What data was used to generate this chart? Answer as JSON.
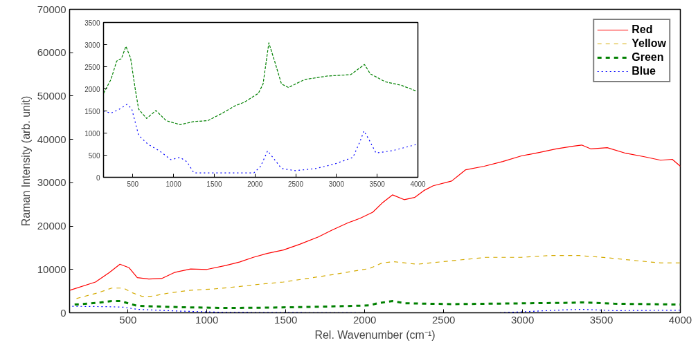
{
  "chart_data": [
    {
      "type": "line",
      "xlabel": "Rel. Wavenumber (cm⁻¹)",
      "ylabel": "Raman Intensity (arb. unit)",
      "xlim": [
        130,
        4000
      ],
      "ylim": [
        0,
        70000
      ],
      "xticks": [
        500,
        1000,
        1500,
        2000,
        2500,
        3000,
        3500,
        4000
      ],
      "yticks": [
        0,
        10000,
        20000,
        30000,
        40000,
        50000,
        60000,
        70000
      ],
      "grid": false,
      "legend": "top right",
      "series": [
        {
          "name": "Red",
          "color": "#ff0000",
          "line_style": "solid",
          "x": [
            132,
            294,
            382,
            449,
            507,
            559,
            632,
            713,
            794,
            897,
            1000,
            1118,
            1206,
            1294,
            1382,
            1485,
            1588,
            1706,
            1794,
            1897,
            1971,
            2051,
            2110,
            2176,
            2250,
            2316,
            2375,
            2434,
            2551,
            2640,
            2757,
            2875,
            2993,
            3110,
            3213,
            3316,
            3375,
            3434,
            3537,
            3654,
            3772,
            3875,
            3949,
            4000
          ],
          "values": [
            5200,
            7100,
            9300,
            11200,
            10400,
            8100,
            7800,
            7900,
            9300,
            10100,
            10000,
            10900,
            11700,
            12800,
            13700,
            14500,
            15800,
            17500,
            19100,
            20800,
            21800,
            23200,
            25300,
            27200,
            26100,
            26600,
            28200,
            29300,
            30400,
            33000,
            33800,
            34900,
            36200,
            37000,
            37800,
            38400,
            38700,
            37800,
            38100,
            36800,
            36000,
            35200,
            35400,
            33800
          ]
        },
        {
          "name": "Yellow",
          "color": "#d4aa00",
          "line_style": "dashed",
          "x": [
            174,
            309,
            397,
            471,
            529,
            588,
            647,
            765,
            897,
            1044,
            1191,
            1338,
            1485,
            1632,
            1779,
            1926,
            2029,
            2110,
            2184,
            2331,
            2551,
            2772,
            2993,
            3169,
            3360,
            3537,
            3728,
            3875,
            4000
          ],
          "values": [
            3300,
            4600,
            5700,
            5700,
            4600,
            3800,
            3800,
            4600,
            5200,
            5500,
            6000,
            6600,
            7100,
            7900,
            8700,
            9600,
            10200,
            11500,
            11800,
            11200,
            12000,
            12800,
            12800,
            13200,
            13200,
            12700,
            12000,
            11500,
            11500
          ]
        },
        {
          "name": "Green",
          "color": "#008000",
          "line_style": "dashed",
          "x": [
            162,
            309,
            397,
            456,
            500,
            559,
            824,
            1118,
            1412,
            1706,
            2029,
            2081,
            2176,
            2257,
            2551,
            3287,
            3375,
            3581,
            4000
          ],
          "values": [
            1900,
            2300,
            2700,
            2700,
            2200,
            1600,
            1300,
            1100,
            1200,
            1400,
            1700,
            2200,
            2700,
            2200,
            2000,
            2300,
            2400,
            2100,
            1900
          ]
        },
        {
          "name": "Blue",
          "color": "#0000ff",
          "line_style": "dotted",
          "x": [
            147,
            382,
            471,
            559,
            824,
            1118,
            2000,
            2846,
            3287,
            3375,
            3581,
            4000
          ],
          "values": [
            1500,
            1400,
            1300,
            800,
            400,
            100,
            0,
            0,
            700,
            800,
            500,
            600
          ]
        }
      ]
    },
    {
      "type": "line",
      "xlim": [
        140,
        4000
      ],
      "ylim": [
        0,
        3500
      ],
      "xticks": [
        500,
        1000,
        1500,
        2000,
        2500,
        3000,
        3500,
        4000
      ],
      "yticks": [
        0,
        500,
        1000,
        1500,
        2000,
        2500,
        3000,
        3500
      ],
      "grid": false,
      "series": [
        {
          "color": "#008000",
          "line_style": "dashed",
          "x": [
            141,
            231,
            302,
            359,
            415,
            472,
            528,
            571,
            670,
            783,
            910,
            1080,
            1250,
            1420,
            1589,
            1759,
            1872,
            2042,
            2099,
            2170,
            2240,
            2325,
            2410,
            2608,
            2891,
            3174,
            3344,
            3415,
            3598,
            3796,
            3980
          ],
          "values": [
            1900,
            2210,
            2630,
            2680,
            2960,
            2700,
            2010,
            1540,
            1330,
            1510,
            1280,
            1190,
            1260,
            1280,
            1440,
            1620,
            1700,
            1900,
            2110,
            3040,
            2630,
            2110,
            2030,
            2210,
            2290,
            2320,
            2550,
            2340,
            2160,
            2080,
            1950
          ]
        },
        {
          "color": "#0000ff",
          "line_style": "dotted",
          "x": [
            141,
            231,
            344,
            429,
            486,
            571,
            684,
            825,
            967,
            1080,
            1165,
            1250,
            1476,
            1759,
            1986,
            2070,
            2155,
            2240,
            2325,
            2495,
            2750,
            2976,
            3202,
            3287,
            3338,
            3400,
            3485,
            3683,
            4000
          ],
          "values": [
            1500,
            1450,
            1550,
            1650,
            1550,
            950,
            750,
            600,
            400,
            450,
            350,
            100,
            100,
            100,
            100,
            250,
            600,
            400,
            200,
            150,
            200,
            300,
            450,
            800,
            1050,
            850,
            550,
            600,
            750
          ]
        }
      ]
    }
  ]
}
